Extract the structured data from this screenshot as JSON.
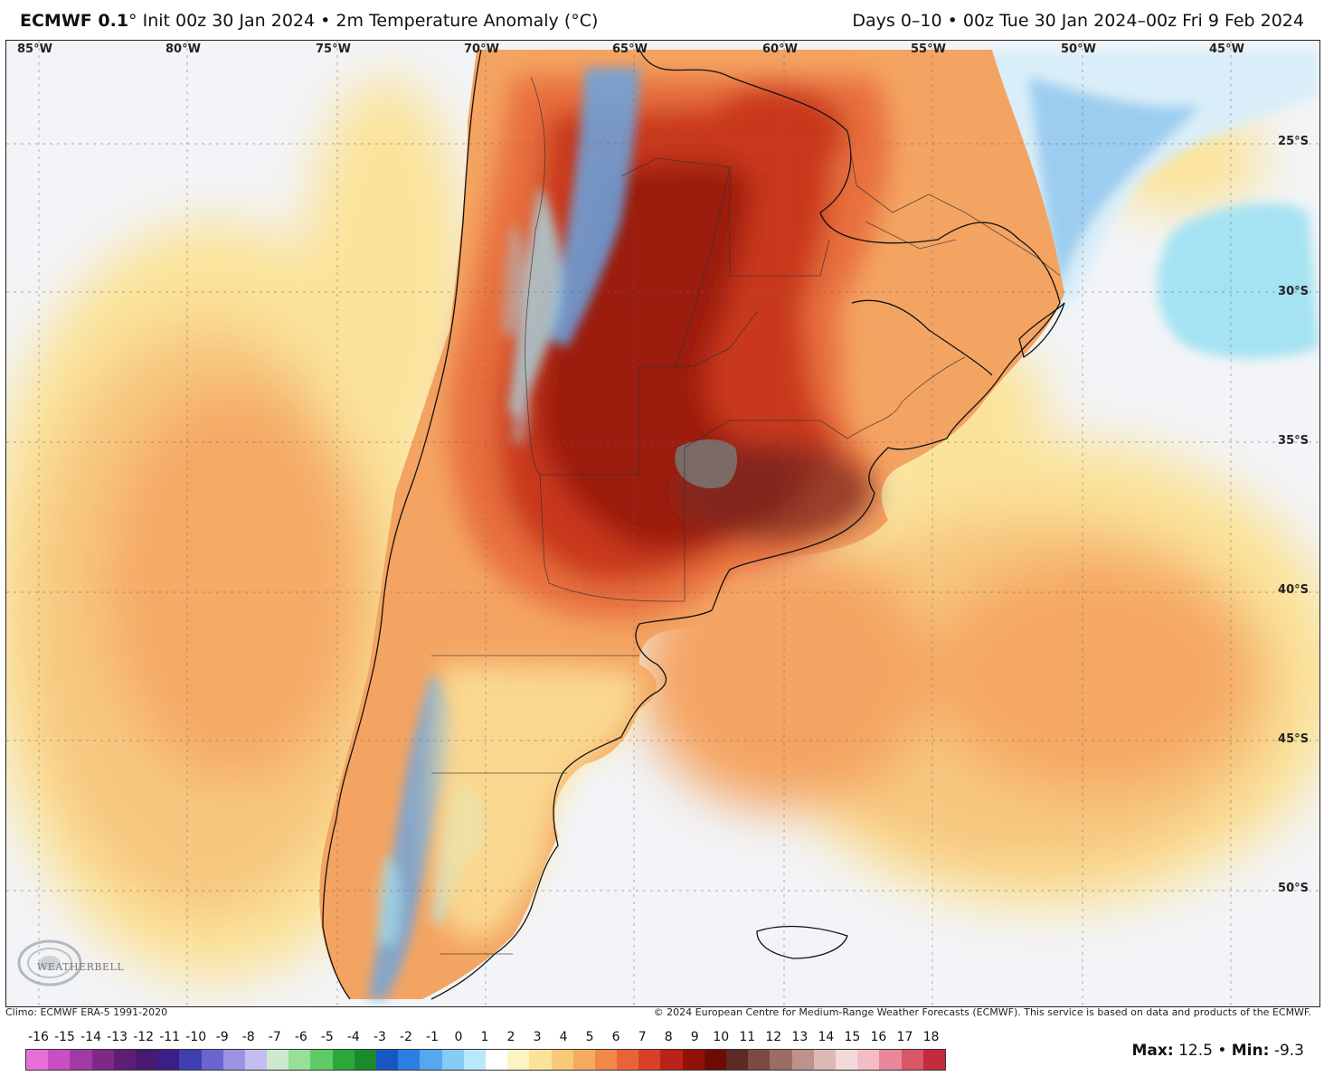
{
  "title": {
    "model": "ECMWF 0.1",
    "degree": "°",
    "init": "Init 00z 30 Jan 2024",
    "bullet": "•",
    "field": "2m Temperature Anomaly (°C)",
    "valid": "Days 0–10 • 00z Tue 30 Jan 2024–00z Fri 9 Feb 2024"
  },
  "map": {
    "longitude_labels": [
      "85°W",
      "80°W",
      "75°W",
      "70°W",
      "65°W",
      "60°W",
      "55°W",
      "50°W",
      "45°W"
    ],
    "latitude_labels": [
      "25°S",
      "30°S",
      "35°S",
      "40°S",
      "45°S",
      "50°S"
    ],
    "colors": {
      "ocean_cool": "#f2f4f7",
      "anom_pale": "#fbeaa4",
      "anom_low": "#f7c77f",
      "anom_mid": "#f4a462",
      "anom_high": "#e8703e",
      "anom_very_high": "#c9371c",
      "anom_extreme": "#9c1d0c",
      "anom_max": "#7a2b22",
      "cold_blue": "#6aa6e2",
      "cool_cyan": "#a5e3f2"
    }
  },
  "logo": {
    "text": "WEATHERBELL",
    "icon": "weatherbell-swirl-logo"
  },
  "footer": {
    "climo": "Climo: ECMWF ERA-5 1991-2020",
    "copyright": "© 2024 European Centre for Medium-Range Weather Forecasts (ECMWF). This service is based on data and products of the ECMWF."
  },
  "colorbar": {
    "ticks": [
      "-16",
      "-15",
      "-14",
      "-13",
      "-12",
      "-11",
      "-10",
      "-9",
      "-8",
      "-7",
      "-6",
      "-5",
      "-4",
      "-3",
      "-2",
      "-1",
      "0",
      "1",
      "2",
      "3",
      "4",
      "5",
      "6",
      "7",
      "8",
      "9",
      "10",
      "11",
      "12",
      "13",
      "14",
      "15",
      "16",
      "17",
      "18"
    ],
    "colors": [
      "#e86fd6",
      "#c94fc3",
      "#a13aa3",
      "#7e2888",
      "#5e1e74",
      "#47196f",
      "#3a1f86",
      "#3f3fb0",
      "#6b64cf",
      "#9b94e0",
      "#c4bdf0",
      "#cde8cc",
      "#98df9a",
      "#5ecb66",
      "#2aa83a",
      "#1b8a2f",
      "#1757c4",
      "#2a7fe0",
      "#56a7ef",
      "#86caf6",
      "#b8e8fb",
      "#ffffff",
      "#fdf3c4",
      "#fbe39a",
      "#f8c978",
      "#f5ab5d",
      "#f08848",
      "#e8633a",
      "#d8402a",
      "#bb2219",
      "#931208",
      "#6e0b05",
      "#5c2a24",
      "#7b4a44",
      "#9c6c66",
      "#bd918c",
      "#ddb8b4",
      "#f3dada",
      "#f6bcc6",
      "#e9889a",
      "#d9566a",
      "#c22c3e"
    ]
  },
  "stats": {
    "max_label": "Max:",
    "max": "12.5",
    "sep": "•",
    "min_label": "Min:",
    "min": "-9.3"
  }
}
